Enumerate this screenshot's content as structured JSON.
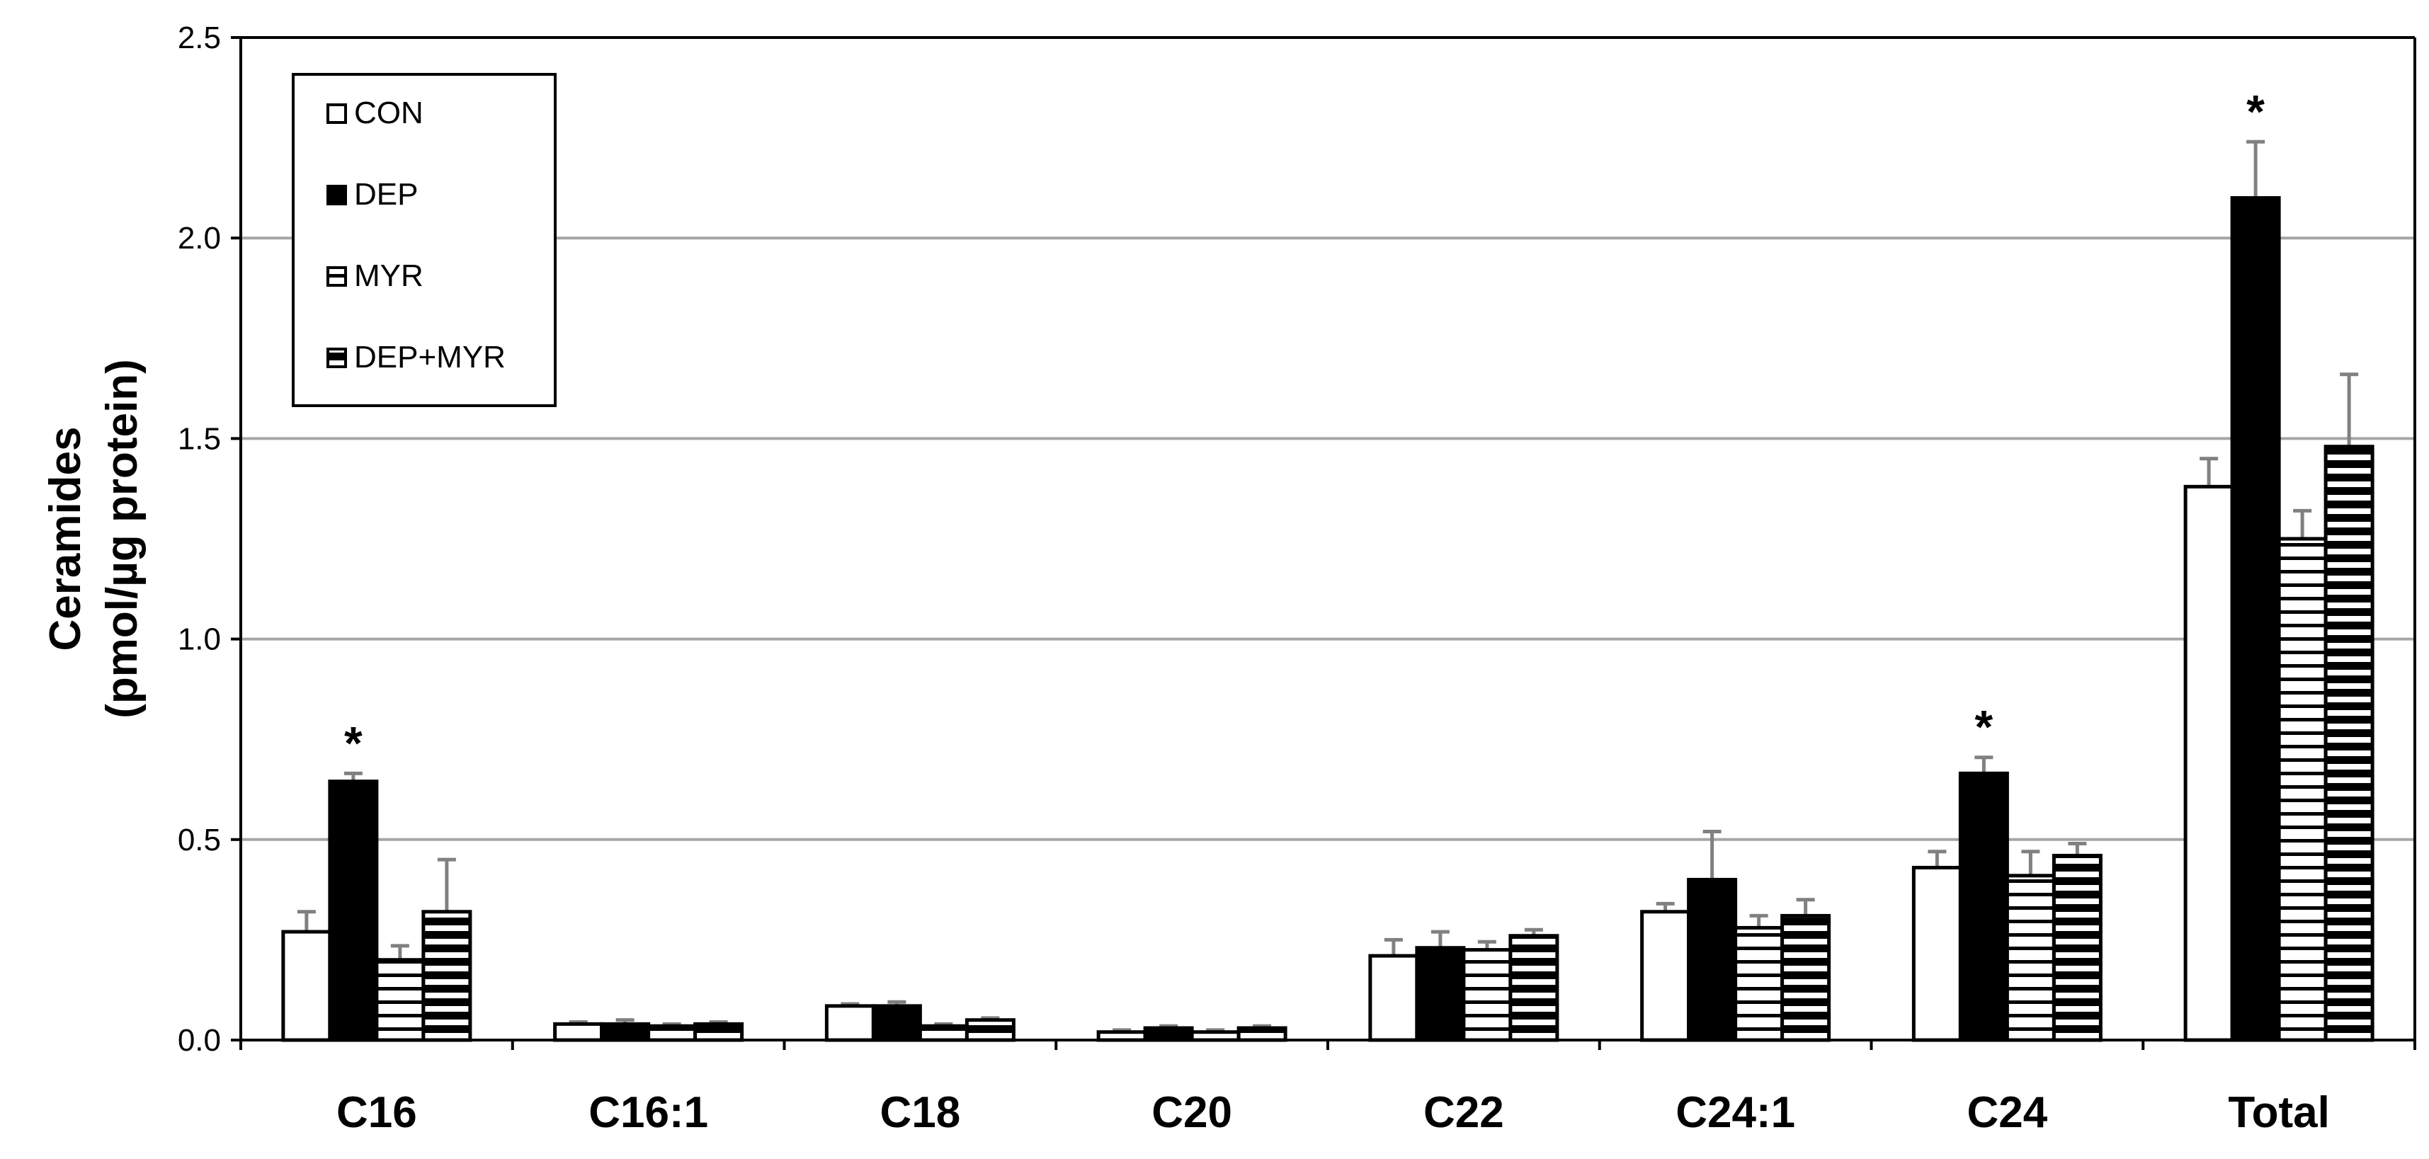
{
  "chart_data": {
    "type": "bar",
    "title": "",
    "xlabel": "",
    "ylabel_lines": [
      "Ceramides",
      "(pmol/µg protein)"
    ],
    "ylim": [
      0,
      2.5
    ],
    "yticks": [
      "0.0",
      "0.5",
      "1.0",
      "1.5",
      "2.0",
      "2.5"
    ],
    "grid": true,
    "legend_position": "top-left",
    "categories": [
      "C16",
      "C16:1",
      "C18",
      "C20",
      "C22",
      "C24:1",
      "C24",
      "Total"
    ],
    "series": [
      {
        "name": "CON",
        "fill": "white",
        "values": [
          0.27,
          0.04,
          0.085,
          0.02,
          0.21,
          0.32,
          0.43,
          1.38
        ],
        "errors": [
          0.05,
          0.005,
          0.005,
          0.005,
          0.04,
          0.02,
          0.04,
          0.07
        ]
      },
      {
        "name": "DEP",
        "fill": "black",
        "values": [
          0.645,
          0.04,
          0.085,
          0.03,
          0.23,
          0.4,
          0.665,
          2.1
        ],
        "errors": [
          0.02,
          0.01,
          0.01,
          0.005,
          0.04,
          0.12,
          0.04,
          0.14
        ]
      },
      {
        "name": "MYR",
        "fill": "hstripe-thin",
        "values": [
          0.2,
          0.035,
          0.035,
          0.02,
          0.225,
          0.28,
          0.41,
          1.25
        ],
        "errors": [
          0.035,
          0.005,
          0.005,
          0.005,
          0.02,
          0.03,
          0.06,
          0.07
        ]
      },
      {
        "name": "DEP+MYR",
        "fill": "hstripe-thick",
        "values": [
          0.32,
          0.04,
          0.05,
          0.03,
          0.26,
          0.31,
          0.46,
          1.48
        ],
        "errors": [
          0.13,
          0.005,
          0.005,
          0.005,
          0.015,
          0.04,
          0.03,
          0.18
        ]
      }
    ],
    "annotations": [
      {
        "category": "C16",
        "series": "DEP",
        "text": "*"
      },
      {
        "category": "C24",
        "series": "DEP",
        "text": "*"
      },
      {
        "category": "Total",
        "series": "DEP",
        "text": "*"
      }
    ],
    "colors": {
      "bar_outline": "#000000",
      "grid": "#a6a6a6",
      "error_bar": "#808080"
    }
  }
}
